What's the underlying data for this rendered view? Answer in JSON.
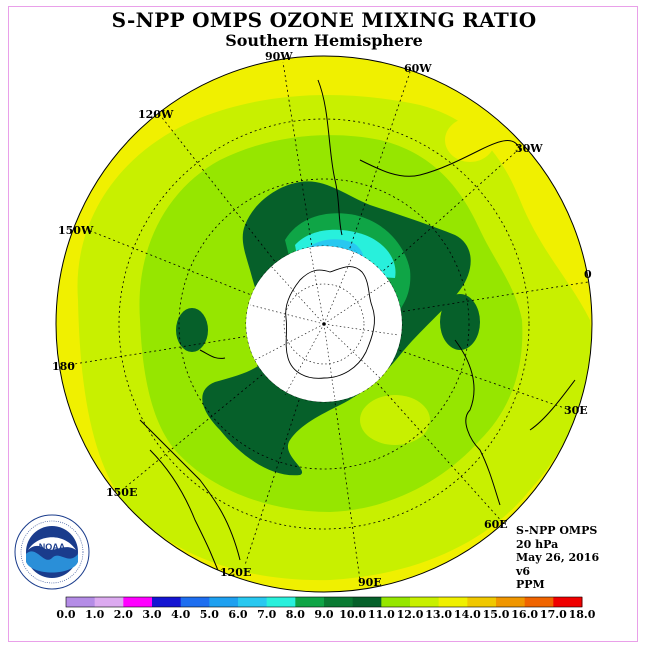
{
  "header": {
    "title": "S-NPP OMPS OZONE MIXING RATIO",
    "subtitle": "Southern Hemisphere"
  },
  "map": {
    "projection": "south-polar-stereographic",
    "longitude_labels": [
      "90W",
      "60W",
      "30W",
      "0",
      "30E",
      "60E",
      "90E",
      "120E",
      "150E",
      "180",
      "150W",
      "120W"
    ],
    "pole_mask": "no-data disk over South Pole (white)",
    "field_summary": {
      "low_near_pole": "cyan/blue values (7.0–8.0 PPM) near 60W",
      "high_ring": "dark green collar (9.0–10.0 PPM) around polar mask",
      "mid_latitudes": "yellow-green (10.0–12.0 PPM)",
      "outer_edge": "yellow (12.0–13.0 PPM)"
    }
  },
  "info": {
    "lines": [
      "S-NPP OMPS",
      "20 hPa",
      "May 26, 2016",
      "v6",
      "PPM"
    ]
  },
  "colorbar": {
    "ticks": [
      "0.0",
      "1.0",
      "2.0",
      "3.0",
      "4.0",
      "5.0",
      "6.0",
      "7.0",
      "8.0",
      "9.0",
      "10.0",
      "11.0",
      "12.0",
      "13.0",
      "14.0",
      "15.0",
      "16.0",
      "17.0",
      "18.0"
    ],
    "colors": [
      "#b48ce6",
      "#dcaaf0",
      "#ff00ff",
      "#1414d2",
      "#1e6ef0",
      "#1ea0f0",
      "#28c8f0",
      "#28f0dc",
      "#0fa546",
      "#0a7a32",
      "#06602a",
      "#96e600",
      "#c8f000",
      "#f0f000",
      "#f0c800",
      "#f09600",
      "#f06400",
      "#f00000",
      "#a05028"
    ]
  },
  "logo": {
    "text": "NOAA",
    "ring_text": "NATIONAL OCEANIC AND ATMOSPHERIC ADMINISTRATION",
    "ring_text_bottom": "U.S. DEPARTMENT OF COMMERCE"
  }
}
